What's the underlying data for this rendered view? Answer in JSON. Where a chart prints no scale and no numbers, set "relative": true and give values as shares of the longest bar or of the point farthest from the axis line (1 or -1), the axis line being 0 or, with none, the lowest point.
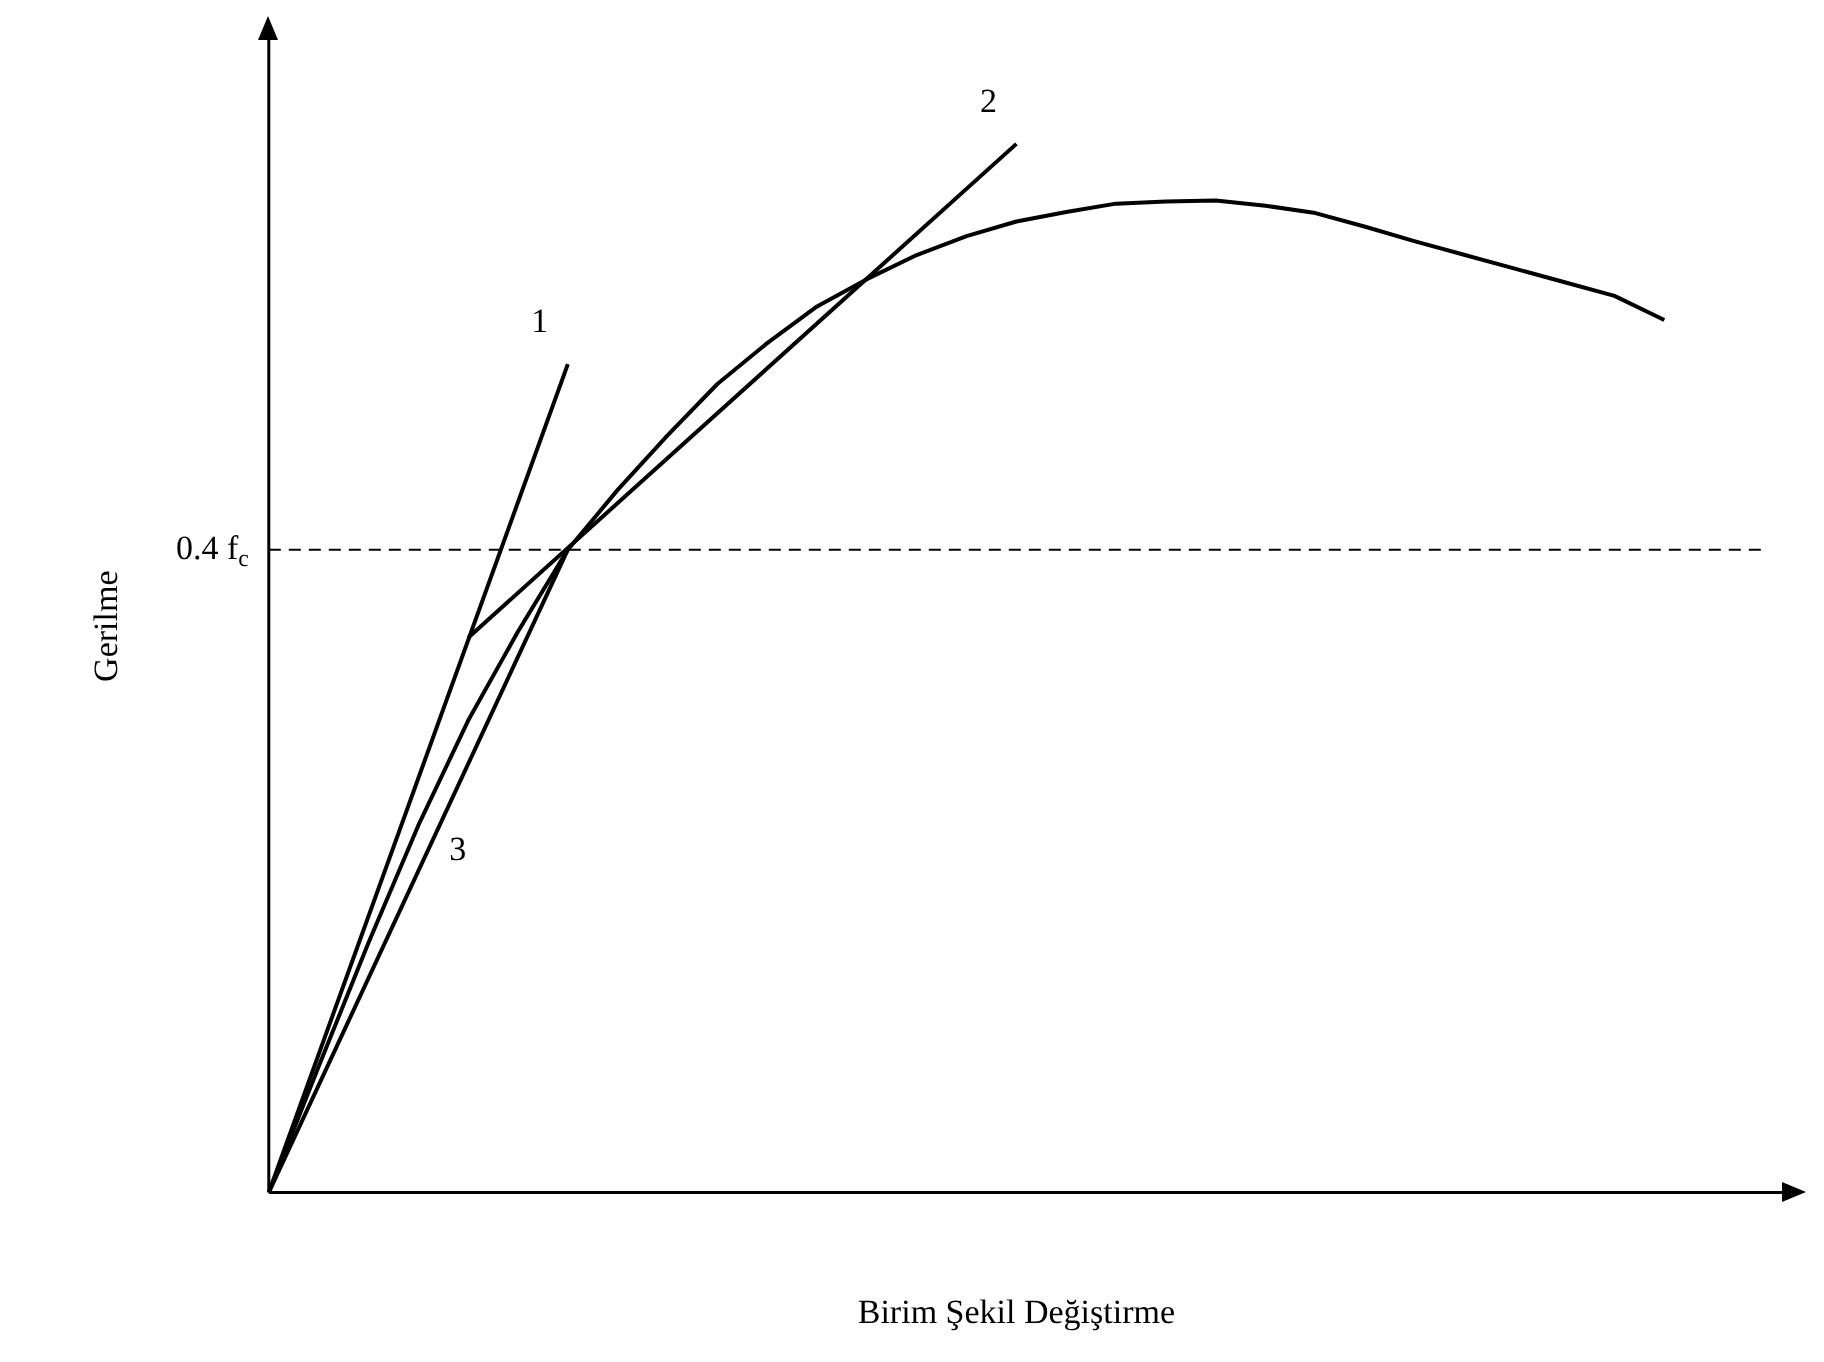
{
  "chart_data": {
    "type": "line",
    "relative": true,
    "xlabel": "Birim Şekil Değiştirme",
    "ylabel": "Gerilme",
    "grid": false,
    "legend": false,
    "marker": "none",
    "line_style": "solid",
    "categories": [
      null,
      null,
      null,
      null,
      null,
      null,
      null,
      null,
      null,
      null,
      null,
      null,
      null,
      null,
      null,
      null,
      null,
      null,
      null,
      null,
      null,
      null,
      null,
      null,
      null,
      null,
      null,
      null,
      null,
      null,
      null
    ],
    "series": [
      {
        "color": "#000000",
        "values": [
          0,
          0.12,
          0.238,
          0.35,
          0.45,
          0.535,
          0.613,
          0.67,
          0.722,
          0.771,
          0.81,
          0.845,
          0.871,
          0.894,
          0.912,
          0.926,
          0.935,
          0.943,
          0.945,
          0.946,
          0.941,
          0.934,
          0.921,
          0.907,
          0.894,
          0.881,
          0.868,
          0.855,
          0.832,
          null,
          null
        ]
      },
      {
        "name": "1",
        "color": "#000000",
        "values": [
          0,
          null,
          null,
          null,
          null,
          null,
          0.79,
          null,
          null,
          null,
          null,
          null,
          null,
          null,
          null,
          null,
          null,
          null,
          null,
          null,
          null,
          null,
          null,
          null,
          null,
          null,
          null,
          null,
          null,
          null,
          null
        ]
      },
      {
        "name": "2",
        "color": "#000000",
        "values": [
          null,
          null,
          null,
          null,
          0.529,
          null,
          null,
          null,
          null,
          null,
          null,
          null,
          null,
          null,
          null,
          1,
          null,
          null,
          null,
          null,
          null,
          null,
          null,
          null,
          null,
          null,
          null,
          null,
          null,
          null,
          null
        ]
      },
      {
        "name": "3",
        "color": "#000000",
        "values": [
          0,
          null,
          null,
          null,
          null,
          null,
          0.613,
          null,
          null,
          null,
          null,
          null,
          null,
          null,
          null,
          null,
          null,
          null,
          null,
          null,
          null,
          null,
          null,
          null,
          null,
          null,
          null,
          null,
          null,
          null,
          null
        ]
      }
    ],
    "ref_lines": [
      {
        "axis": "y",
        "value": 0.613,
        "label": "0.4 f$_{c}$",
        "line_style": "dashed",
        "color": "#000000"
      }
    ]
  }
}
